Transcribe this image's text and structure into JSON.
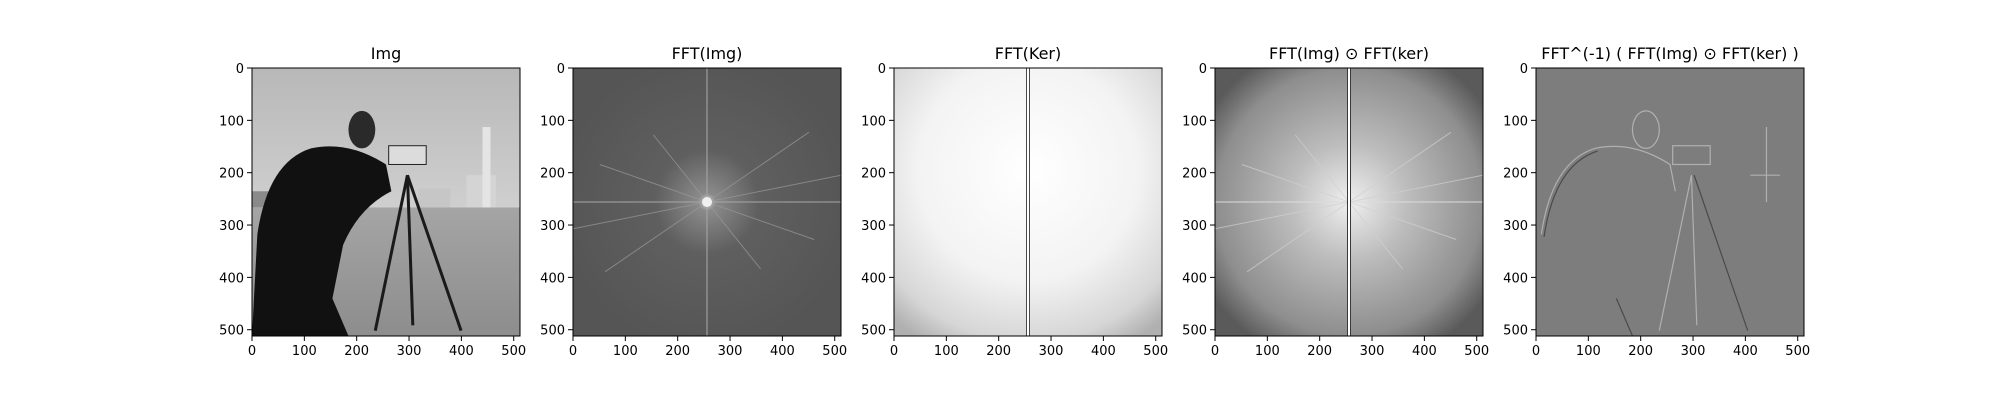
{
  "chart_data": [
    {
      "type": "image",
      "title": "Img",
      "xlim": [
        0,
        512
      ],
      "ylim": [
        512,
        0
      ],
      "xticks": [
        0,
        100,
        200,
        300,
        400,
        500
      ],
      "yticks": [
        0,
        100,
        200,
        300,
        400,
        500
      ],
      "colormap": "gray",
      "content": "photograph"
    },
    {
      "type": "image",
      "title": "FFT(Img)",
      "xlim": [
        0,
        512
      ],
      "ylim": [
        512,
        0
      ],
      "xticks": [
        0,
        100,
        200,
        300,
        400,
        500
      ],
      "yticks": [
        0,
        100,
        200,
        300,
        400,
        500
      ],
      "colormap": "gray",
      "content": "spectrum"
    },
    {
      "type": "image",
      "title": "FFT(Ker)",
      "xlim": [
        0,
        512
      ],
      "ylim": [
        512,
        0
      ],
      "xticks": [
        0,
        100,
        200,
        300,
        400,
        500
      ],
      "yticks": [
        0,
        100,
        200,
        300,
        400,
        500
      ],
      "colormap": "gray",
      "content": "kernel-spectrum"
    },
    {
      "type": "image",
      "title": "FFT(Img) ⊙ FFT(ker)",
      "xlim": [
        0,
        512
      ],
      "ylim": [
        512,
        0
      ],
      "xticks": [
        0,
        100,
        200,
        300,
        400,
        500
      ],
      "yticks": [
        0,
        100,
        200,
        300,
        400,
        500
      ],
      "colormap": "gray",
      "content": "product-spectrum"
    },
    {
      "type": "image",
      "title": "FFT^(-1) ( FFT(Img) ⊙ FFT(ker) )",
      "xlim": [
        0,
        512
      ],
      "ylim": [
        512,
        0
      ],
      "xticks": [
        0,
        100,
        200,
        300,
        400,
        500
      ],
      "yticks": [
        0,
        100,
        200,
        300,
        400,
        500
      ],
      "colormap": "gray",
      "content": "edge-map"
    }
  ]
}
